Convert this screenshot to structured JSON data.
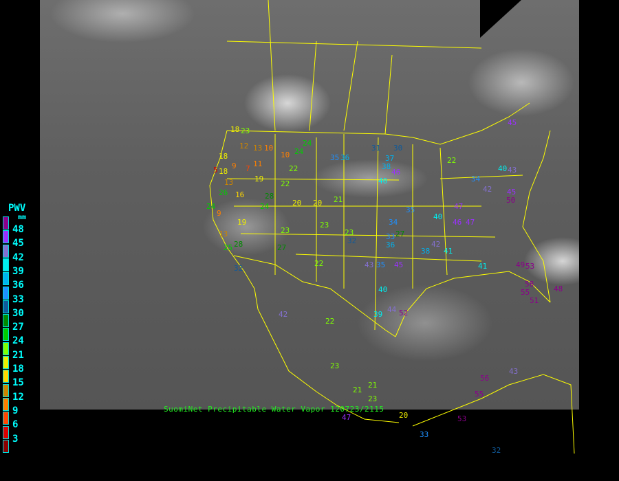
{
  "title": "SuomiNet Precipitable Water Vapor 120723/2115",
  "legend": {
    "title": "PWV",
    "unit": "mm",
    "labels": [
      "48",
      "45",
      "42",
      "39",
      "36",
      "33",
      "30",
      "27",
      "24",
      "21",
      "18",
      "15",
      "12",
      "9",
      "6",
      "3"
    ],
    "colors": [
      "#8b008b",
      "#9b30ff",
      "#8470d0",
      "#00eeee",
      "#00b2ee",
      "#1e90ff",
      "#105a9a",
      "#008b00",
      "#00cd00",
      "#7fff00",
      "#eeee00",
      "#ffd700",
      "#cd8500",
      "#ff8000",
      "#ff4500",
      "#dd0000",
      "#8b0000"
    ]
  },
  "stations": [
    "18",
    "23",
    "18",
    "12",
    "13",
    "10",
    "18",
    "9",
    "11",
    "13",
    "7",
    "10",
    "24",
    "24",
    "16",
    "19",
    "5",
    "22",
    "24",
    "22",
    "20",
    "30",
    "31",
    "35",
    "36",
    "37",
    "38",
    "40",
    "46",
    "45",
    "43",
    "22",
    "34",
    "40",
    "42",
    "50",
    "45",
    "47",
    "26",
    "28",
    "23",
    "20",
    "27",
    "33",
    "36",
    "32",
    "34",
    "35",
    "41",
    "43",
    "38",
    "40",
    "46",
    "19",
    "23",
    "22",
    "25",
    "27",
    "21",
    "23",
    "9",
    "24",
    "35",
    "42",
    "44",
    "45",
    "47",
    "41",
    "49",
    "53",
    "55",
    "51",
    "58",
    "48",
    "42",
    "22",
    "39",
    "40",
    "52",
    "56",
    "55",
    "43",
    "23",
    "21",
    "21",
    "23",
    "20",
    "47",
    "33",
    "32",
    "53",
    "13",
    "28",
    "32"
  ],
  "satellite_colors": {
    "borders": "#ffff00",
    "title": "#22ee22",
    "legend_text": "#00ffff"
  }
}
